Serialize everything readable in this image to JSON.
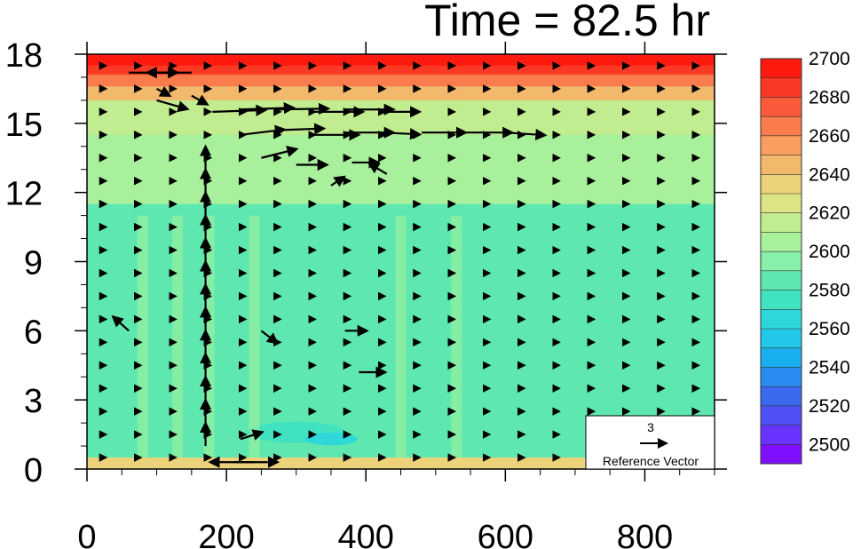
{
  "chart_data": {
    "type": "heatmap",
    "title": "Time = 82.5 hr",
    "xlabel": "",
    "ylabel": "",
    "xlim": [
      0,
      900
    ],
    "ylim": [
      0,
      18
    ],
    "x_ticks": [
      0,
      200,
      400,
      600,
      800
    ],
    "y_ticks": [
      0,
      3,
      6,
      9,
      12,
      15,
      18
    ],
    "x_tick_labels": [
      "0",
      "200",
      "400",
      "600",
      "800"
    ],
    "y_tick_labels": [
      "0",
      "3",
      "6",
      "9",
      "12",
      "15",
      "18"
    ],
    "colorbar": {
      "levels": [
        2500,
        2510,
        2520,
        2530,
        2540,
        2550,
        2560,
        2570,
        2580,
        2590,
        2600,
        2610,
        2620,
        2630,
        2640,
        2650,
        2660,
        2670,
        2680,
        2690,
        2700,
        2710
      ],
      "labels": [
        "2500",
        "2520",
        "2540",
        "2560",
        "2580",
        "2600",
        "2620",
        "2640",
        "2660",
        "2680",
        "2700"
      ],
      "colors": [
        "#7f10ff",
        "#6a33ff",
        "#5050f5",
        "#3b6af0",
        "#2a8cf0",
        "#19aef0",
        "#21c8e8",
        "#2ed8d8",
        "#40e2c0",
        "#5ee8b0",
        "#88f0a8",
        "#a8f09c",
        "#c2ec90",
        "#dce484",
        "#ecd27a",
        "#f2b86c",
        "#f89e5e",
        "#fa7c4c",
        "#fb5a3a",
        "#fb3a26",
        "#ff1a10"
      ]
    },
    "contour_field": {
      "description_free_values": true,
      "background_value": 2600,
      "bands": [
        {
          "y_range": [
            0,
            0.5
          ],
          "value": 2640
        },
        {
          "y_range": [
            0.5,
            11.5
          ],
          "value": 2595
        },
        {
          "y_range": [
            11.5,
            14.5
          ],
          "value": 2610
        },
        {
          "y_range": [
            14.5,
            16.0
          ],
          "value": 2625
        },
        {
          "y_range": [
            16.0,
            16.6
          ],
          "value": 2650
        },
        {
          "y_range": [
            16.6,
            17.1
          ],
          "value": 2670
        },
        {
          "y_range": [
            17.1,
            17.5
          ],
          "value": 2690
        },
        {
          "y_range": [
            17.5,
            18.0
          ],
          "value": 2705
        }
      ]
    },
    "vector_reference": {
      "label": "Reference Vector",
      "magnitude": "3"
    },
    "vectors_description_grid": {
      "x_step": 50,
      "y_step": 1.0
    }
  }
}
